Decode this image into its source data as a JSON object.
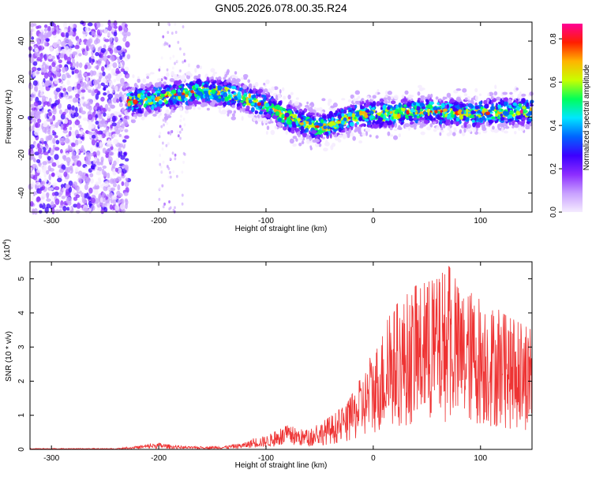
{
  "title": "GN05.2026.078.00.35.R24",
  "chart_data": [
    {
      "type": "heatmap",
      "xlabel": "Height of straight line (km)",
      "ylabel": "Frequency (Hz)",
      "xlim": [
        -320,
        148
      ],
      "ylim": [
        -50,
        50
      ],
      "x_ticks": [
        -300,
        -200,
        -100,
        0,
        100
      ],
      "y_ticks": [
        -40,
        -20,
        0,
        20,
        40
      ],
      "colorbar": {
        "label": "Normalized spectral amplitude",
        "range": [
          0.0,
          0.87
        ],
        "ticks": [
          0.0,
          0.2,
          0.4,
          0.6,
          0.8
        ],
        "colors": [
          "#f5ecff",
          "#c8a0ff",
          "#8c2dff",
          "#3c00ff",
          "#0064ff",
          "#00e6ff",
          "#00ff5a",
          "#c8ff00",
          "#ffb400",
          "#ff1e00",
          "#ff0096"
        ]
      },
      "ridge": {
        "x": [
          -320,
          -300,
          -280,
          -250,
          -230,
          -200,
          -180,
          -160,
          -140,
          -120,
          -100,
          -90,
          -80,
          -70,
          -60,
          -50,
          -40,
          -30,
          -20,
          -10,
          0,
          20,
          40,
          60,
          80,
          100,
          120,
          148
        ],
        "y": [
          8,
          6,
          5,
          4,
          8,
          10,
          12,
          14,
          13,
          10,
          6,
          3,
          0,
          -2,
          -4,
          -6,
          -4,
          -2,
          0,
          1,
          2,
          2,
          3,
          3,
          2,
          2,
          3,
          3
        ]
      }
    },
    {
      "type": "line",
      "xlabel": "Height of straight line (km)",
      "ylabel": "SNR (10 * v/v)",
      "y_multiplier": "(x10",
      "y_multiplier_exp": "4",
      "y_multiplier_close": ")",
      "xlim": [
        -320,
        148
      ],
      "ylim": [
        0,
        5.5
      ],
      "x_ticks": [
        -300,
        -200,
        -100,
        0,
        100
      ],
      "y_ticks": [
        0,
        1,
        2,
        3,
        4,
        5
      ],
      "color": "#ee3333",
      "envelope": {
        "x": [
          -320,
          -240,
          -220,
          -200,
          -185,
          -170,
          -140,
          -120,
          -110,
          -100,
          -80,
          -60,
          -40,
          -25,
          -10,
          0,
          10,
          20,
          40,
          60,
          70,
          80,
          100,
          120,
          148
        ],
        "y": [
          0.03,
          0.03,
          0.1,
          0.2,
          0.12,
          0.08,
          0.1,
          0.2,
          0.35,
          0.4,
          0.7,
          0.55,
          1.0,
          1.3,
          2.2,
          2.9,
          3.6,
          4.2,
          4.8,
          5.0,
          5.4,
          4.8,
          4.6,
          4.0,
          3.5
        ]
      }
    }
  ]
}
